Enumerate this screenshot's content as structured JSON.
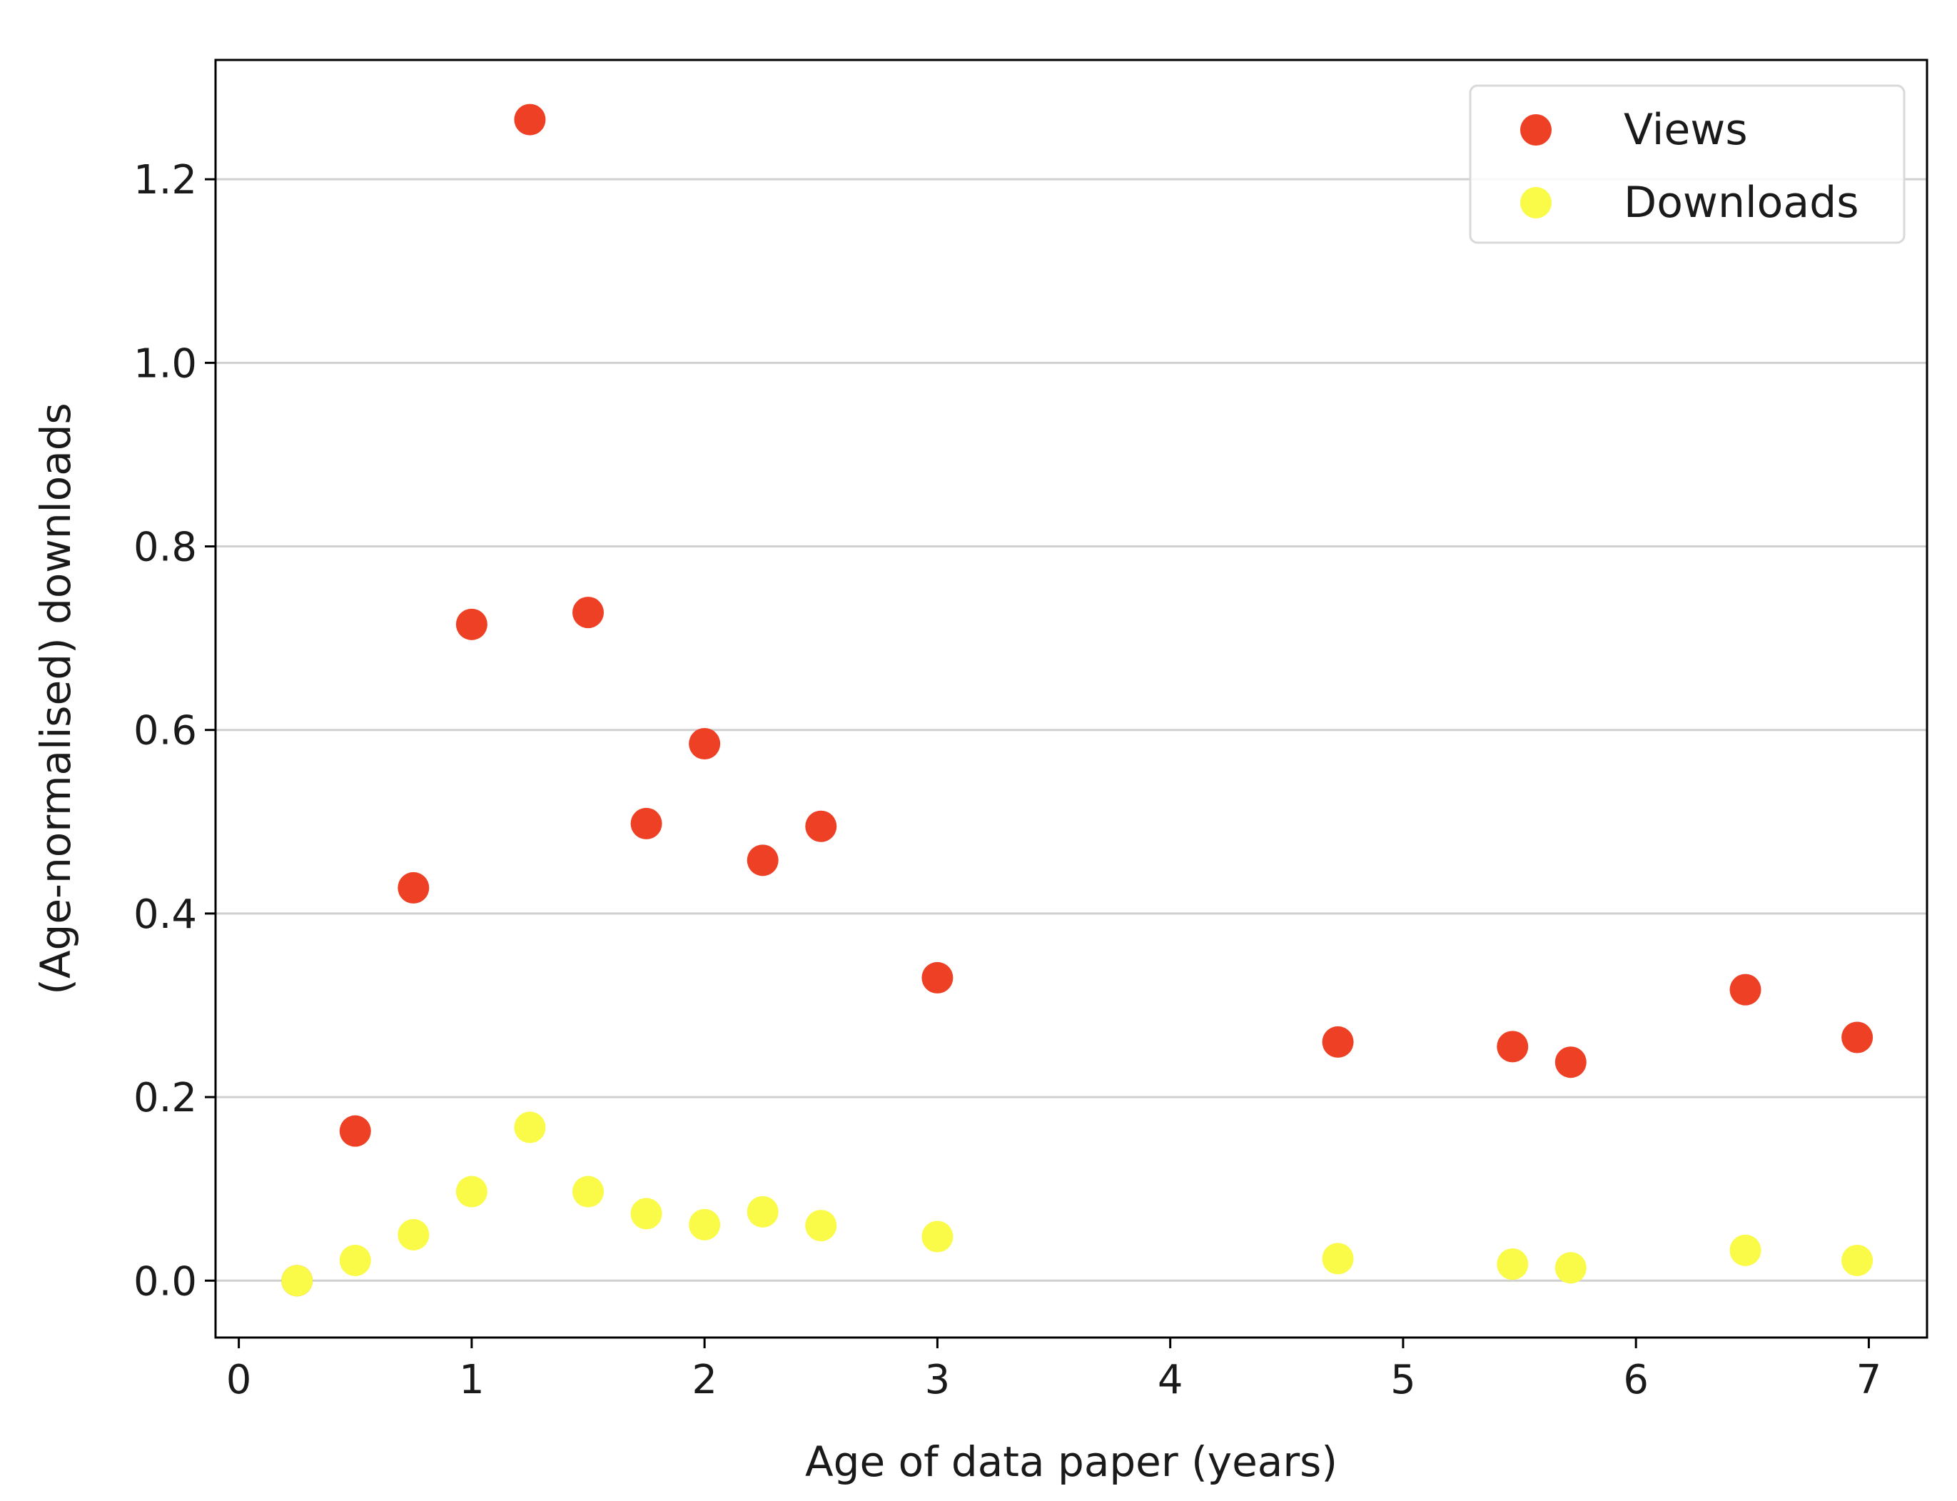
{
  "chart_data": {
    "type": "scatter",
    "title": "",
    "xlabel": "Age of data paper (years)",
    "ylabel": "(Age-normalised) downloads",
    "xlim": [
      -0.1,
      7.25
    ],
    "ylim": [
      -0.062,
      1.33
    ],
    "xticks": [
      0,
      1,
      2,
      3,
      4,
      5,
      6,
      7
    ],
    "xtick_labels": [
      "0",
      "1",
      "2",
      "3",
      "4",
      "5",
      "6",
      "7"
    ],
    "yticks": [
      0.0,
      0.2,
      0.4,
      0.6,
      0.8,
      1.0,
      1.2
    ],
    "ytick_labels": [
      "0.0",
      "0.2",
      "0.4",
      "0.6",
      "0.8",
      "1.0",
      "1.2"
    ],
    "grid": "horizontal",
    "legend_position": "top-right",
    "series": [
      {
        "name": "Views",
        "color": "#ee4025",
        "x": [
          0.25,
          0.5,
          0.75,
          1.0,
          1.25,
          1.5,
          1.75,
          2.0,
          2.25,
          2.5,
          3.0,
          4.72,
          5.47,
          5.72,
          6.47,
          6.95
        ],
        "y": [
          0.0,
          0.163,
          0.428,
          0.715,
          1.265,
          0.728,
          0.498,
          0.585,
          0.458,
          0.495,
          0.33,
          0.26,
          0.255,
          0.238,
          0.317,
          0.265
        ]
      },
      {
        "name": "Downloads",
        "color": "#fafa48",
        "x": [
          0.25,
          0.5,
          0.75,
          1.0,
          1.25,
          1.5,
          1.75,
          2.0,
          2.25,
          2.5,
          3.0,
          4.72,
          5.47,
          5.72,
          6.47,
          6.95
        ],
        "y": [
          0.0,
          0.022,
          0.05,
          0.097,
          0.167,
          0.097,
          0.073,
          0.061,
          0.075,
          0.06,
          0.048,
          0.024,
          0.018,
          0.014,
          0.033,
          0.022
        ]
      }
    ]
  }
}
